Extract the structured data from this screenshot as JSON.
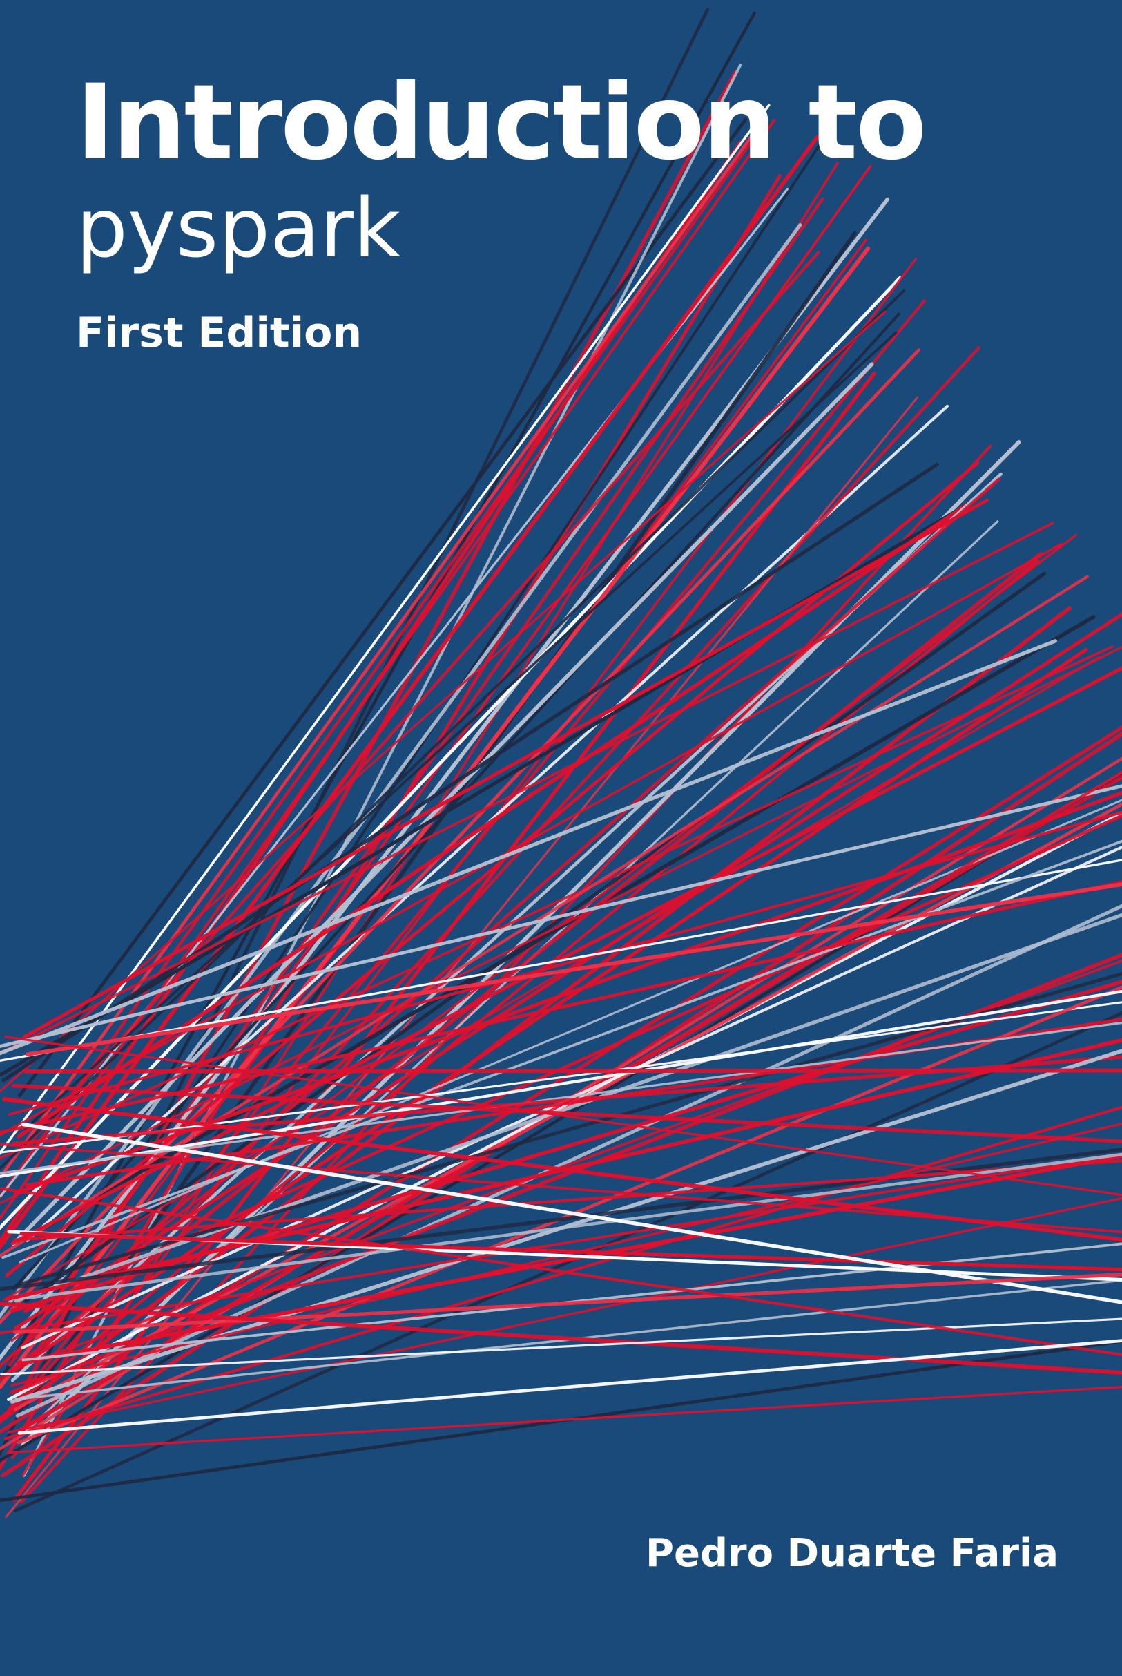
{
  "cover": {
    "title_line1": "Introduction to",
    "title_line2": "pyspark",
    "edition": "First Edition",
    "author": "Pedro Duarte Faria"
  },
  "colors": {
    "background": "#194a7a",
    "red": "#e0102e",
    "light_red": "#f03048",
    "white": "#ffffff",
    "light_gray": "#b4c0d2",
    "dark_navy": "#1f2a44"
  }
}
